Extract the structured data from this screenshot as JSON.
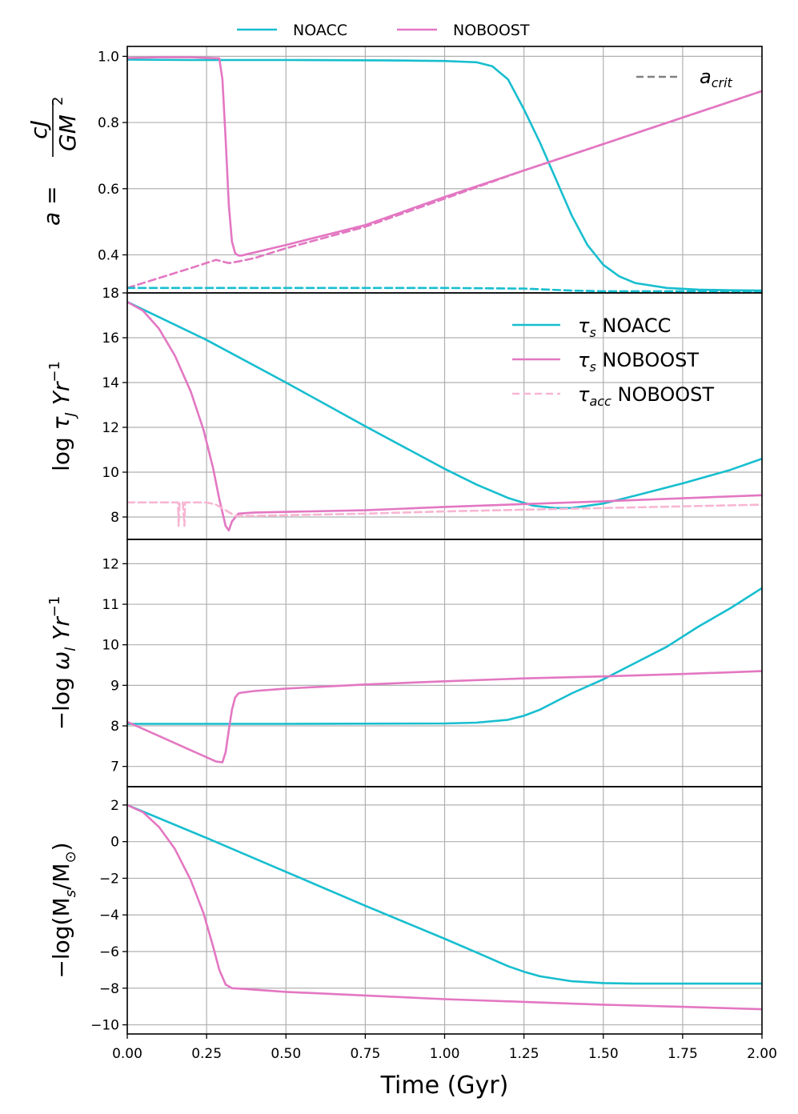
{
  "top_legend": [
    {
      "label": "NOACC",
      "color": "#17becf"
    },
    {
      "label": "NOBOOST",
      "color": "#e377c2"
    }
  ],
  "xlabel": "Time (Gyr)",
  "x_ticks": [
    "0.00",
    "0.25",
    "0.50",
    "0.75",
    "1.00",
    "1.25",
    "1.50",
    "1.75",
    "2.00"
  ],
  "chart_data": [
    {
      "type": "line",
      "ylabel_parts": [
        "a = ",
        "cJ",
        "GM",
        "2"
      ],
      "xlim": [
        0,
        2
      ],
      "ylim": [
        0.285,
        1.03
      ],
      "y_ticks": [
        "0.4",
        "0.6",
        "0.8",
        "1.0"
      ],
      "legend": [
        {
          "label_main": "a",
          "label_sub": "crit",
          "color": "#808080",
          "dashed": true
        }
      ],
      "series": [
        {
          "name": "NOACC a",
          "color": "#17becf",
          "dashed": false,
          "x": [
            0,
            0.2,
            0.5,
            0.8,
            0.9,
            1.0,
            1.05,
            1.1,
            1.15,
            1.2,
            1.25,
            1.3,
            1.35,
            1.4,
            1.45,
            1.5,
            1.55,
            1.6,
            1.7,
            1.8,
            1.9,
            2.0
          ],
          "y": [
            0.99,
            0.989,
            0.989,
            0.988,
            0.987,
            0.986,
            0.984,
            0.982,
            0.97,
            0.93,
            0.84,
            0.74,
            0.63,
            0.52,
            0.43,
            0.37,
            0.335,
            0.315,
            0.3,
            0.295,
            0.293,
            0.292
          ]
        },
        {
          "name": "NOBOOST a",
          "color": "#e377c2",
          "dashed": false,
          "x": [
            0,
            0.1,
            0.2,
            0.29,
            0.3,
            0.31,
            0.32,
            0.33,
            0.34,
            0.35,
            0.36,
            0.5,
            0.75,
            1.0,
            1.25,
            1.5,
            1.75,
            2.0
          ],
          "y": [
            0.995,
            0.997,
            0.997,
            0.994,
            0.93,
            0.75,
            0.55,
            0.44,
            0.405,
            0.398,
            0.398,
            0.43,
            0.49,
            0.575,
            0.655,
            0.735,
            0.815,
            0.895
          ]
        },
        {
          "name": "NOBOOST a_crit",
          "color": "#e377c2",
          "dashed": true,
          "x": [
            0,
            0.1,
            0.2,
            0.28,
            0.32,
            0.35,
            0.4,
            0.5,
            0.75,
            1.0,
            1.25,
            1.5,
            1.75,
            2.0
          ],
          "y": [
            0.3,
            0.33,
            0.36,
            0.385,
            0.375,
            0.38,
            0.39,
            0.42,
            0.485,
            0.57,
            0.655,
            0.735,
            0.815,
            0.895
          ]
        },
        {
          "name": "NOACC a_crit",
          "color": "#17becf",
          "dashed": true,
          "x": [
            0,
            0.5,
            1.0,
            1.25,
            1.4,
            1.5,
            1.75,
            2.0
          ],
          "y": [
            0.3,
            0.3,
            0.3,
            0.298,
            0.292,
            0.29,
            0.29,
            0.29
          ]
        }
      ]
    },
    {
      "type": "line",
      "ylabel_parts": [
        "log ",
        "τ",
        "J",
        " Yr",
        "−1"
      ],
      "xlim": [
        0,
        2
      ],
      "ylim": [
        7.0,
        18.0
      ],
      "y_ticks": [
        "8",
        "10",
        "12",
        "14",
        "16",
        "18"
      ],
      "legend": [
        {
          "label_main": "τ",
          "label_sub": "s",
          "label_rest": " NOACC",
          "color": "#17becf",
          "dashed": false
        },
        {
          "label_main": "τ",
          "label_sub": "s",
          "label_rest": " NOBOOST",
          "color": "#e377c2",
          "dashed": false
        },
        {
          "label_main": "τ",
          "label_sub": "acc",
          "label_rest": " NOBOOST",
          "color": "#f7b6d2",
          "dashed": true
        }
      ],
      "series": [
        {
          "name": "tau_s NOACC",
          "color": "#17becf",
          "dashed": false,
          "x": [
            0,
            0.25,
            0.5,
            0.75,
            1.0,
            1.1,
            1.2,
            1.28,
            1.35,
            1.4,
            1.5,
            1.6,
            1.75,
            1.9,
            2.0
          ],
          "y": [
            17.6,
            15.9,
            14.0,
            12.05,
            10.15,
            9.45,
            8.85,
            8.5,
            8.4,
            8.4,
            8.6,
            8.95,
            9.5,
            10.1,
            10.6
          ]
        },
        {
          "name": "tau_s NOBOOST",
          "color": "#e377c2",
          "dashed": false,
          "x": [
            0,
            0.05,
            0.1,
            0.15,
            0.2,
            0.24,
            0.27,
            0.29,
            0.31,
            0.32,
            0.33,
            0.35,
            0.4,
            0.75,
            1.0,
            1.5,
            2.0
          ],
          "y": [
            17.6,
            17.2,
            16.4,
            15.2,
            13.6,
            11.9,
            10.2,
            8.8,
            7.6,
            7.4,
            7.8,
            8.15,
            8.2,
            8.3,
            8.45,
            8.7,
            8.97
          ]
        },
        {
          "name": "tau_acc NOBOOST",
          "color": "#f7b6d2",
          "dashed": true,
          "x": [
            0,
            0.16,
            0.162,
            0.165,
            0.175,
            0.18,
            0.182,
            0.185,
            0.25,
            0.28,
            0.31,
            0.34,
            0.4,
            0.75,
            1.0,
            1.5,
            2.0
          ],
          "y": [
            8.65,
            8.65,
            7.6,
            8.65,
            8.65,
            7.6,
            8.65,
            8.65,
            8.65,
            8.55,
            8.3,
            8.05,
            8.05,
            8.15,
            8.25,
            8.4,
            8.55
          ]
        }
      ]
    },
    {
      "type": "line",
      "ylabel_parts": [
        "−log ",
        "ω",
        "l",
        " Yr",
        "−1"
      ],
      "xlim": [
        0,
        2
      ],
      "ylim": [
        6.5,
        12.6
      ],
      "y_ticks": [
        "7",
        "8",
        "9",
        "10",
        "11",
        "12"
      ],
      "legend": [],
      "series": [
        {
          "name": "omega NOACC",
          "color": "#17becf",
          "dashed": false,
          "x": [
            0,
            0.5,
            1.0,
            1.1,
            1.2,
            1.25,
            1.3,
            1.35,
            1.4,
            1.5,
            1.6,
            1.7,
            1.8,
            1.9,
            2.0
          ],
          "y": [
            8.05,
            8.05,
            8.06,
            8.08,
            8.15,
            8.25,
            8.4,
            8.6,
            8.8,
            9.15,
            9.55,
            9.95,
            10.45,
            10.9,
            11.4
          ]
        },
        {
          "name": "omega NOBOOST",
          "color": "#e377c2",
          "dashed": false,
          "x": [
            0,
            0.1,
            0.2,
            0.28,
            0.3,
            0.31,
            0.32,
            0.33,
            0.34,
            0.35,
            0.36,
            0.4,
            0.5,
            0.75,
            1.0,
            1.25,
            1.5,
            1.75,
            2.0
          ],
          "y": [
            8.1,
            7.75,
            7.4,
            7.12,
            7.1,
            7.35,
            7.9,
            8.4,
            8.7,
            8.8,
            8.82,
            8.86,
            8.92,
            9.02,
            9.1,
            9.17,
            9.22,
            9.28,
            9.35
          ]
        }
      ]
    },
    {
      "type": "line",
      "ylabel_parts": [
        "−log(M",
        "s",
        "/M",
        "⊙",
        ")"
      ],
      "xlim": [
        0,
        2
      ],
      "ylim": [
        -10.5,
        3.0
      ],
      "y_ticks": [
        "−10",
        "−8",
        "−6",
        "−4",
        "−2",
        "0",
        "2"
      ],
      "legend": [],
      "series": [
        {
          "name": "mass NOACC",
          "color": "#17becf",
          "dashed": false,
          "x": [
            0,
            0.25,
            0.5,
            0.75,
            1.0,
            1.1,
            1.2,
            1.25,
            1.3,
            1.4,
            1.5,
            1.6,
            1.75,
            2.0
          ],
          "y": [
            2.0,
            0.2,
            -1.65,
            -3.5,
            -5.3,
            -6.05,
            -6.8,
            -7.1,
            -7.35,
            -7.62,
            -7.72,
            -7.75,
            -7.75,
            -7.75
          ]
        },
        {
          "name": "mass NOBOOST",
          "color": "#e377c2",
          "dashed": false,
          "x": [
            0,
            0.05,
            0.1,
            0.15,
            0.2,
            0.24,
            0.27,
            0.29,
            0.31,
            0.33,
            0.35,
            0.5,
            0.75,
            1.0,
            1.25,
            1.5,
            1.75,
            2.0
          ],
          "y": [
            2.0,
            1.6,
            0.8,
            -0.4,
            -2.1,
            -3.9,
            -5.7,
            -7.0,
            -7.8,
            -8.0,
            -8.02,
            -8.2,
            -8.4,
            -8.6,
            -8.75,
            -8.9,
            -9.02,
            -9.15
          ]
        }
      ]
    }
  ]
}
